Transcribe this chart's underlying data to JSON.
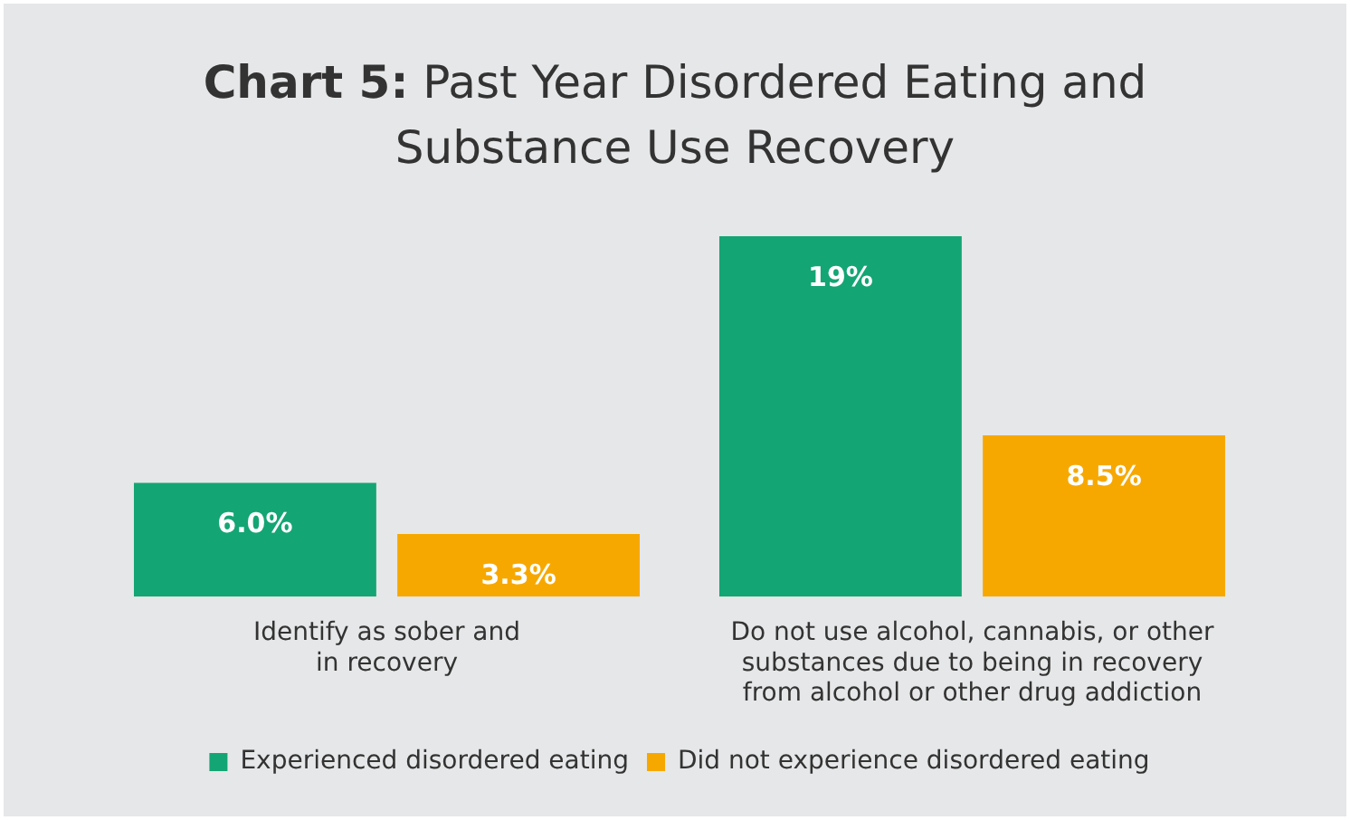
{
  "chart_data": {
    "type": "bar",
    "title": "Chart 5: Past Year Disordered Eating and Substance Use Recovery",
    "categories": [
      "Identify as sober and in recovery",
      "Do not use alcohol, cannabis, or other substances due to being in recovery from alcohol or other drug addiction"
    ],
    "series": [
      {
        "name": "Experienced disordered eating",
        "color": "#14a574",
        "values": [
          6.0,
          19
        ],
        "value_labels": [
          "6.0%",
          "19%"
        ]
      },
      {
        "name": "Did not experience disordered eating",
        "color": "#f7a800",
        "values": [
          3.3,
          8.5
        ],
        "value_labels": [
          "3.3%",
          "8.5%"
        ]
      }
    ],
    "legend": "bottom",
    "grid": false
  }
}
